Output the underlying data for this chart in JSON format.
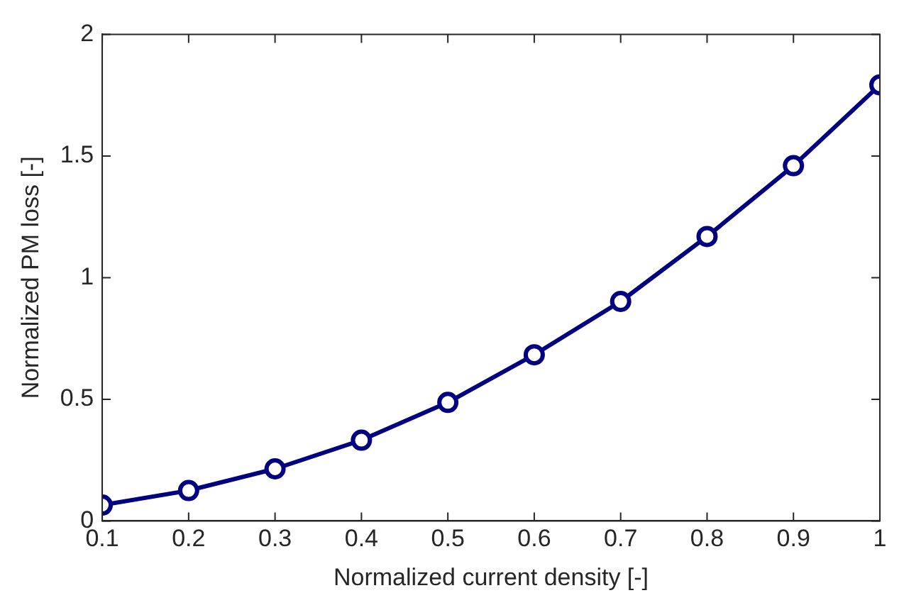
{
  "chart_data": {
    "type": "line",
    "xlabel": "Normalized current density [-]",
    "ylabel": "Normalized PM loss [-]",
    "x": [
      0.1,
      0.2,
      0.3,
      0.4,
      0.5,
      0.6,
      0.7,
      0.8,
      0.9,
      1
    ],
    "series": [
      {
        "color": "#000080",
        "values": [
          0.065,
          0.125,
          0.214,
          0.332,
          0.487,
          0.683,
          0.902,
          1.169,
          1.46,
          1.792
        ]
      }
    ],
    "xlim": [
      0.1,
      1
    ],
    "xticks": [
      0.1,
      0.2,
      0.3,
      0.4,
      0.5,
      0.6,
      0.7,
      0.8,
      0.9,
      1
    ],
    "ylim": [
      0,
      2
    ],
    "yticks": [
      0,
      0.5,
      1,
      1.5,
      2
    ],
    "grid": false,
    "legend": false,
    "marker": "circle",
    "line_style": "solid"
  }
}
